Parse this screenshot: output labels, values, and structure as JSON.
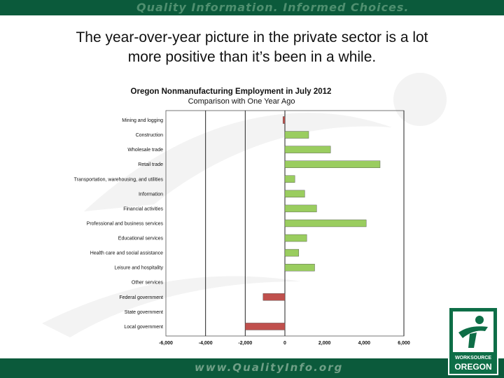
{
  "header": {
    "banner_text": "Quality Information. Informed Choices."
  },
  "slide": {
    "title_line1": "The year-over-year picture in the private sector is a lot",
    "title_line2": "more positive than it’s been in a while."
  },
  "footer": {
    "url_text": "www.QualityInfo.org"
  },
  "logo": {
    "line1": "WORKSOURCE",
    "line2": "OREGON"
  },
  "colors": {
    "positive": "#9acd5f",
    "negative": "#c0504d",
    "banner": "#0b5a3b"
  },
  "chart_data": {
    "type": "bar",
    "orientation": "horizontal",
    "title": "Oregon Nonmanufacturing Employment in July 2012",
    "subtitle": "Comparison with One Year Ago",
    "categories": [
      "Mining and logging",
      "Construction",
      "Wholesale trade",
      "Retail trade",
      "Transportation, warehousing, and utilities",
      "Information",
      "Financial activities",
      "Professional and business services",
      "Educational services",
      "Health care and social assistance",
      "Leisure and hospitality",
      "Other services",
      "Federal government",
      "State government",
      "Local government"
    ],
    "values": [
      -100,
      1200,
      2300,
      4800,
      500,
      1000,
      1600,
      4100,
      1100,
      700,
      1500,
      0,
      -1100,
      0,
      -2000
    ],
    "xlim": [
      -6000,
      6000
    ],
    "xticks": [
      "-6,000",
      "-4,000",
      "-2,000",
      "0",
      "2,000",
      "4,000",
      "6,000"
    ],
    "gridlines": [
      -4000,
      -2000,
      0,
      6000
    ]
  }
}
